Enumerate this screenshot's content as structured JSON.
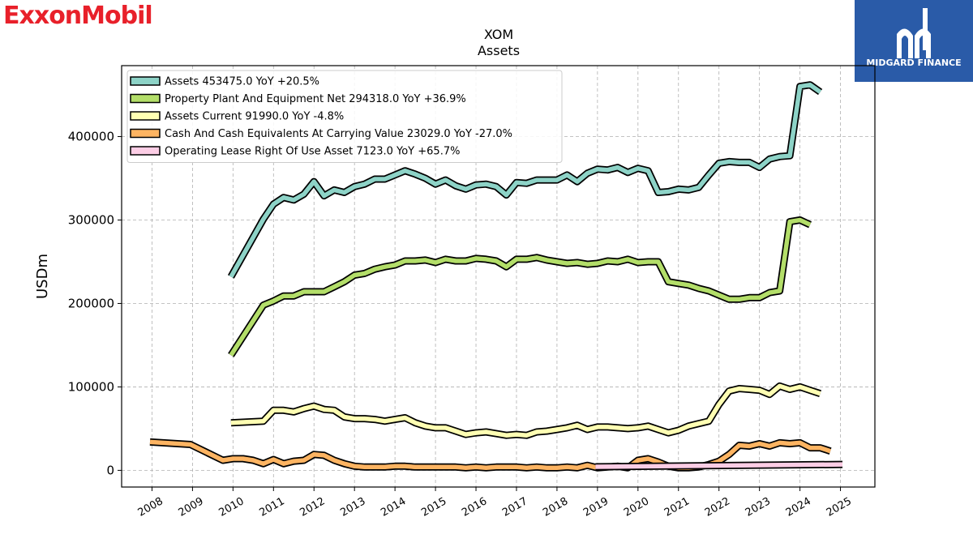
{
  "brand": {
    "left_logo_text": "ExxonMobil",
    "right_logo_text": "MIDGARD FINANCE",
    "right_logo_bg": "#2a5ba8",
    "left_logo_color": "#e8202a"
  },
  "chart_data": {
    "type": "line",
    "title": "XOM",
    "subtitle": "Assets",
    "ylabel": "USDm",
    "xlabel": "",
    "xlim": [
      2007.25,
      2025.85
    ],
    "ylim": [
      -20000,
      485000
    ],
    "grid": true,
    "legend_position": "top-left",
    "x_ticks": [
      "2008",
      "2009",
      "2010",
      "2011",
      "2012",
      "2013",
      "2014",
      "2015",
      "2016",
      "2017",
      "2018",
      "2019",
      "2020",
      "2021",
      "2022",
      "2023",
      "2024",
      "2025"
    ],
    "y_ticks": [
      "0",
      "100000",
      "200000",
      "300000",
      "400000"
    ],
    "y_tick_values": [
      0,
      100000,
      200000,
      300000,
      400000
    ],
    "series": [
      {
        "name": "Assets",
        "legend_label": "Assets  453475.0 YoY +20.5%",
        "color": "#8dd3c7",
        "points": [
          [
            2009.95,
            232000
          ],
          [
            2010.75,
            301000
          ],
          [
            2011.0,
            319000
          ],
          [
            2011.25,
            327000
          ],
          [
            2011.5,
            324000
          ],
          [
            2011.75,
            331000
          ],
          [
            2012.0,
            346000
          ],
          [
            2012.25,
            329000
          ],
          [
            2012.5,
            336000
          ],
          [
            2012.75,
            333000
          ],
          [
            2013.0,
            340000
          ],
          [
            2013.25,
            343000
          ],
          [
            2013.5,
            349000
          ],
          [
            2013.75,
            349000
          ],
          [
            2014.0,
            354000
          ],
          [
            2014.25,
            359000
          ],
          [
            2014.5,
            355000
          ],
          [
            2014.75,
            350000
          ],
          [
            2015.0,
            343000
          ],
          [
            2015.25,
            348000
          ],
          [
            2015.5,
            341000
          ],
          [
            2015.75,
            337000
          ],
          [
            2016.0,
            342000
          ],
          [
            2016.25,
            343000
          ],
          [
            2016.5,
            340000
          ],
          [
            2016.75,
            330000
          ],
          [
            2017.0,
            345000
          ],
          [
            2017.25,
            344000
          ],
          [
            2017.5,
            348000
          ],
          [
            2017.75,
            348000
          ],
          [
            2018.0,
            348000
          ],
          [
            2018.25,
            354000
          ],
          [
            2018.5,
            346000
          ],
          [
            2018.75,
            356000
          ],
          [
            2019.0,
            361000
          ],
          [
            2019.25,
            360000
          ],
          [
            2019.5,
            363000
          ],
          [
            2019.75,
            357000
          ],
          [
            2020.0,
            362000
          ],
          [
            2020.25,
            359000
          ],
          [
            2020.5,
            333000
          ],
          [
            2020.75,
            334000
          ],
          [
            2021.0,
            337000
          ],
          [
            2021.25,
            336000
          ],
          [
            2021.5,
            339000
          ],
          [
            2021.75,
            354000
          ],
          [
            2022.0,
            368000
          ],
          [
            2022.25,
            370000
          ],
          [
            2022.5,
            369000
          ],
          [
            2022.75,
            369000
          ],
          [
            2023.0,
            363000
          ],
          [
            2023.25,
            373000
          ],
          [
            2023.5,
            376000
          ],
          [
            2023.75,
            377000
          ],
          [
            2024.0,
            460000
          ],
          [
            2024.25,
            462000
          ],
          [
            2024.5,
            453475
          ]
        ]
      },
      {
        "name": "Property Plant And Equipment Net",
        "legend_label": "Property Plant And Equipment Net  294318.0 YoY +36.9%",
        "color": "#b3de69",
        "points": [
          [
            2009.95,
            138000
          ],
          [
            2010.75,
            198000
          ],
          [
            2011.0,
            203000
          ],
          [
            2011.25,
            209000
          ],
          [
            2011.5,
            209000
          ],
          [
            2011.75,
            214000
          ],
          [
            2012.0,
            214000
          ],
          [
            2012.25,
            214000
          ],
          [
            2012.5,
            220000
          ],
          [
            2012.75,
            226000
          ],
          [
            2013.0,
            234000
          ],
          [
            2013.25,
            236000
          ],
          [
            2013.5,
            241000
          ],
          [
            2013.75,
            244000
          ],
          [
            2014.0,
            246000
          ],
          [
            2014.25,
            251000
          ],
          [
            2014.5,
            251000
          ],
          [
            2014.75,
            252000
          ],
          [
            2015.0,
            249000
          ],
          [
            2015.25,
            253000
          ],
          [
            2015.5,
            251000
          ],
          [
            2015.75,
            251000
          ],
          [
            2016.0,
            254000
          ],
          [
            2016.25,
            253000
          ],
          [
            2016.5,
            251000
          ],
          [
            2016.75,
            244000
          ],
          [
            2017.0,
            253000
          ],
          [
            2017.25,
            253000
          ],
          [
            2017.5,
            255000
          ],
          [
            2017.75,
            252000
          ],
          [
            2018.0,
            250000
          ],
          [
            2018.25,
            248000
          ],
          [
            2018.5,
            249000
          ],
          [
            2018.75,
            247000
          ],
          [
            2019.0,
            248000
          ],
          [
            2019.25,
            251000
          ],
          [
            2019.5,
            250000
          ],
          [
            2019.75,
            253000
          ],
          [
            2020.0,
            249000
          ],
          [
            2020.25,
            250000
          ],
          [
            2020.5,
            250000
          ],
          [
            2020.75,
            226000
          ],
          [
            2021.0,
            224000
          ],
          [
            2021.25,
            222000
          ],
          [
            2021.5,
            218000
          ],
          [
            2021.75,
            215000
          ],
          [
            2022.0,
            210000
          ],
          [
            2022.25,
            205000
          ],
          [
            2022.5,
            205000
          ],
          [
            2022.75,
            207000
          ],
          [
            2023.0,
            207000
          ],
          [
            2023.25,
            213000
          ],
          [
            2023.5,
            215000
          ],
          [
            2023.75,
            298000
          ],
          [
            2024.0,
            300000
          ],
          [
            2024.25,
            294318
          ]
        ]
      },
      {
        "name": "Assets Current",
        "legend_label": "Assets Current  91990.0 YoY -4.8%",
        "color": "#ffffb3",
        "points": [
          [
            2009.95,
            57000
          ],
          [
            2010.75,
            59000
          ],
          [
            2011.0,
            72000
          ],
          [
            2011.25,
            72000
          ],
          [
            2011.5,
            70000
          ],
          [
            2011.75,
            74000
          ],
          [
            2012.0,
            77000
          ],
          [
            2012.25,
            73000
          ],
          [
            2012.5,
            72000
          ],
          [
            2012.75,
            64000
          ],
          [
            2013.0,
            62000
          ],
          [
            2013.25,
            62000
          ],
          [
            2013.5,
            61000
          ],
          [
            2013.75,
            59000
          ],
          [
            2014.0,
            61000
          ],
          [
            2014.25,
            63000
          ],
          [
            2014.5,
            57000
          ],
          [
            2014.75,
            53000
          ],
          [
            2015.0,
            51000
          ],
          [
            2015.25,
            51000
          ],
          [
            2015.5,
            47000
          ],
          [
            2015.75,
            43000
          ],
          [
            2016.0,
            45000
          ],
          [
            2016.25,
            46000
          ],
          [
            2016.5,
            44000
          ],
          [
            2016.75,
            42000
          ],
          [
            2017.0,
            43000
          ],
          [
            2017.25,
            42000
          ],
          [
            2017.5,
            46000
          ],
          [
            2017.75,
            47000
          ],
          [
            2018.0,
            49000
          ],
          [
            2018.25,
            51000
          ],
          [
            2018.5,
            54000
          ],
          [
            2018.75,
            49000
          ],
          [
            2019.0,
            52000
          ],
          [
            2019.25,
            52000
          ],
          [
            2019.5,
            51000
          ],
          [
            2019.75,
            50000
          ],
          [
            2020.0,
            51000
          ],
          [
            2020.25,
            53000
          ],
          [
            2020.5,
            49000
          ],
          [
            2020.75,
            45000
          ],
          [
            2021.0,
            48000
          ],
          [
            2021.25,
            53000
          ],
          [
            2021.5,
            56000
          ],
          [
            2021.75,
            59000
          ],
          [
            2022.0,
            79000
          ],
          [
            2022.25,
            95000
          ],
          [
            2022.5,
            98000
          ],
          [
            2022.75,
            97000
          ],
          [
            2023.0,
            96000
          ],
          [
            2023.25,
            91000
          ],
          [
            2023.5,
            101000
          ],
          [
            2023.75,
            97000
          ],
          [
            2024.0,
            100000
          ],
          [
            2024.25,
            96000
          ],
          [
            2024.5,
            91990
          ]
        ]
      },
      {
        "name": "Cash And Cash Equivalents At Carrying Value",
        "legend_label": "Cash And Cash Equivalents At Carrying Value  23029.0 YoY -27.0%",
        "color": "#fdb462",
        "points": [
          [
            2007.95,
            34000
          ],
          [
            2008.95,
            31000
          ],
          [
            2009.75,
            12000
          ],
          [
            2010.0,
            14000
          ],
          [
            2010.25,
            14000
          ],
          [
            2010.5,
            12000
          ],
          [
            2010.75,
            8000
          ],
          [
            2011.0,
            13000
          ],
          [
            2011.25,
            8000
          ],
          [
            2011.5,
            11000
          ],
          [
            2011.75,
            12000
          ],
          [
            2012.0,
            19000
          ],
          [
            2012.25,
            18000
          ],
          [
            2012.5,
            12000
          ],
          [
            2012.75,
            8000
          ],
          [
            2013.0,
            5000
          ],
          [
            2013.25,
            4000
          ],
          [
            2013.5,
            4000
          ],
          [
            2013.75,
            4000
          ],
          [
            2014.0,
            5000
          ],
          [
            2014.25,
            5000
          ],
          [
            2014.5,
            4000
          ],
          [
            2014.75,
            4000
          ],
          [
            2015.0,
            4000
          ],
          [
            2015.25,
            4000
          ],
          [
            2015.5,
            4000
          ],
          [
            2015.75,
            3000
          ],
          [
            2016.0,
            4000
          ],
          [
            2016.25,
            3000
          ],
          [
            2016.5,
            4000
          ],
          [
            2016.75,
            4000
          ],
          [
            2017.0,
            4000
          ],
          [
            2017.25,
            3000
          ],
          [
            2017.5,
            4000
          ],
          [
            2017.75,
            3000
          ],
          [
            2018.0,
            3000
          ],
          [
            2018.25,
            4000
          ],
          [
            2018.5,
            3000
          ],
          [
            2018.75,
            6000
          ],
          [
            2019.0,
            3000
          ],
          [
            2019.25,
            4000
          ],
          [
            2019.5,
            5000
          ],
          [
            2019.75,
            3000
          ],
          [
            2020.0,
            12000
          ],
          [
            2020.25,
            14000
          ],
          [
            2020.5,
            10000
          ],
          [
            2020.75,
            5000
          ],
          [
            2021.0,
            3000
          ],
          [
            2021.25,
            3000
          ],
          [
            2021.5,
            4000
          ],
          [
            2021.75,
            7000
          ],
          [
            2022.0,
            11000
          ],
          [
            2022.25,
            19000
          ],
          [
            2022.5,
            30000
          ],
          [
            2022.75,
            29000
          ],
          [
            2023.0,
            32000
          ],
          [
            2023.25,
            29000
          ],
          [
            2023.5,
            33000
          ],
          [
            2023.75,
            32000
          ],
          [
            2024.0,
            33000
          ],
          [
            2024.25,
            27000
          ],
          [
            2024.5,
            27000
          ],
          [
            2024.75,
            23029
          ]
        ]
      },
      {
        "name": "Operating Lease Right Of Use Asset",
        "legend_label": "Operating Lease Right Of Use Asset  7123.0 YoY +65.7%",
        "color": "#fccde5",
        "points": [
          [
            2018.95,
            4300
          ],
          [
            2025.05,
            7123
          ]
        ]
      }
    ]
  }
}
